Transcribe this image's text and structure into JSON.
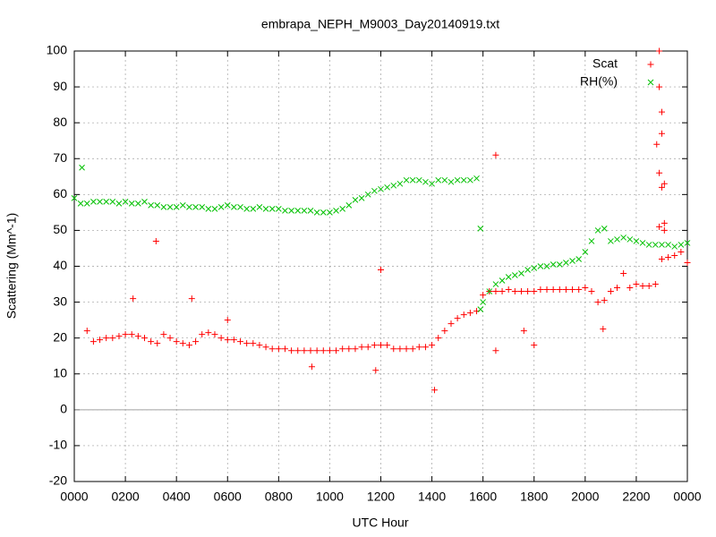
{
  "chart_data": {
    "type": "scatter",
    "title": "embrapa_NEPH_M9003_Day20140919.txt",
    "x_label": "UTC Hour",
    "y_label": "Scattering (Mm^-1)",
    "xlim": [
      0,
      24
    ],
    "ylim": [
      -20,
      100
    ],
    "xticks": [
      {
        "value": 0,
        "label": "0000"
      },
      {
        "value": 2,
        "label": "0200"
      },
      {
        "value": 4,
        "label": "0400"
      },
      {
        "value": 6,
        "label": "0600"
      },
      {
        "value": 8,
        "label": "0800"
      },
      {
        "value": 10,
        "label": "1000"
      },
      {
        "value": 12,
        "label": "1200"
      },
      {
        "value": 14,
        "label": "1400"
      },
      {
        "value": 16,
        "label": "1600"
      },
      {
        "value": 18,
        "label": "1800"
      },
      {
        "value": 20,
        "label": "2000"
      },
      {
        "value": 22,
        "label": "2200"
      },
      {
        "value": 24,
        "label": "0000"
      }
    ],
    "yticks": [
      -20,
      -10,
      0,
      10,
      20,
      30,
      40,
      50,
      60,
      70,
      80,
      90,
      100
    ],
    "grid": true,
    "legend": "top-right",
    "series": [
      {
        "name": "Scat",
        "color": "#ff0000",
        "marker": "+",
        "x": [
          0.5,
          0.75,
          1,
          1.25,
          1.5,
          1.75,
          2,
          2.25,
          2.5,
          2.75,
          3,
          3.25,
          3.5,
          3.75,
          4,
          4.25,
          4.5,
          4.75,
          5,
          5.25,
          5.5,
          5.75,
          6,
          6.25,
          6.5,
          6.75,
          7,
          7.25,
          7.5,
          7.75,
          8,
          8.25,
          8.5,
          8.75,
          9,
          9.25,
          9.5,
          9.75,
          10,
          10.25,
          10.5,
          10.75,
          11,
          11.25,
          11.5,
          11.75,
          12,
          12.25,
          12.5,
          12.75,
          13,
          13.25,
          13.5,
          13.75,
          14,
          14.25,
          14.5,
          14.75,
          15,
          15.25,
          15.5,
          15.75,
          16,
          16.25,
          16.5,
          16.75,
          17,
          17.25,
          17.5,
          17.75,
          18,
          18.25,
          18.5,
          18.75,
          19,
          19.25,
          19.5,
          19.75,
          20,
          20.25,
          20.5,
          20.75,
          21,
          21.25,
          21.5,
          21.75,
          22,
          22.25,
          22.5,
          22.75,
          23,
          23.25,
          23.5,
          23.75,
          24,
          3.2,
          2.3,
          4.6,
          6,
          12,
          14.1,
          16.5,
          16.5,
          17.6,
          18,
          20.7,
          22.9,
          22.9,
          23,
          23,
          22.8,
          22.9,
          23,
          23.1,
          23.1,
          23.1,
          22.9,
          11.8,
          9.3
        ],
        "values": [
          22,
          19,
          19.5,
          20,
          20,
          20.5,
          21,
          21,
          20.5,
          20,
          19,
          18.5,
          21,
          20,
          19,
          18.5,
          18,
          19,
          21,
          21.5,
          21,
          20,
          19.5,
          19.5,
          19,
          18.5,
          18.5,
          18,
          17.5,
          17,
          17,
          17,
          16.5,
          16.5,
          16.5,
          16.5,
          16.5,
          16.5,
          16.5,
          16.5,
          17,
          17,
          17,
          17.5,
          17.5,
          18,
          18,
          18,
          17,
          17,
          17,
          17,
          17.5,
          17.5,
          18,
          20,
          22,
          24,
          25.5,
          26.5,
          27,
          27.5,
          32,
          33,
          33,
          33,
          33.5,
          33,
          33,
          33,
          33,
          33.5,
          33.5,
          33.5,
          33.5,
          33.5,
          33.5,
          33.5,
          34,
          33,
          30,
          30.5,
          33,
          34,
          38,
          34,
          35,
          34.5,
          34.5,
          35,
          42,
          42.5,
          43,
          44,
          41,
          47,
          31,
          31,
          25,
          39,
          5.5,
          71,
          16.5,
          22,
          18,
          22.5,
          100,
          90,
          83,
          77,
          74,
          66,
          62,
          63,
          52,
          50,
          51,
          11,
          12
        ]
      },
      {
        "name": "RH(%)",
        "color": "#00c000",
        "marker": "x",
        "x": [
          0,
          0.25,
          0.5,
          0.75,
          1,
          1.25,
          1.5,
          1.75,
          2,
          2.25,
          2.5,
          2.75,
          3,
          3.25,
          3.5,
          3.75,
          4,
          4.25,
          4.5,
          4.75,
          5,
          5.25,
          5.5,
          5.75,
          6,
          6.25,
          6.5,
          6.75,
          7,
          7.25,
          7.5,
          7.75,
          8,
          8.25,
          8.5,
          8.75,
          9,
          9.25,
          9.5,
          9.75,
          10,
          10.25,
          10.5,
          10.75,
          11,
          11.25,
          11.5,
          11.75,
          12,
          12.25,
          12.5,
          12.75,
          13,
          13.25,
          13.5,
          13.75,
          14,
          14.25,
          14.5,
          14.75,
          15,
          15.25,
          15.5,
          15.75,
          16,
          16.25,
          16.5,
          16.75,
          17,
          17.25,
          17.5,
          17.75,
          18,
          18.25,
          18.5,
          18.75,
          19,
          19.25,
          19.5,
          19.75,
          20,
          20.25,
          20.5,
          20.75,
          21,
          21.25,
          21.5,
          21.75,
          22,
          22.25,
          22.5,
          22.75,
          23,
          23.25,
          23.5,
          23.75,
          24,
          0.3,
          15.9,
          15.9
        ],
        "values": [
          59,
          57.5,
          57.5,
          58,
          58,
          58,
          58,
          57.5,
          58,
          57.5,
          57.5,
          58,
          57,
          57,
          56.5,
          56.5,
          56.5,
          57,
          56.5,
          56.5,
          56.5,
          56,
          56,
          56.5,
          57,
          56.5,
          56.5,
          56,
          56,
          56.5,
          56,
          56,
          56,
          55.5,
          55.5,
          55.5,
          55.5,
          55.5,
          55,
          55,
          55,
          55.5,
          56,
          57,
          58.5,
          59,
          60,
          61,
          61.5,
          62,
          62.5,
          63,
          64,
          64,
          64,
          63.5,
          63,
          64,
          64,
          63.5,
          64,
          64,
          64,
          64.5,
          30,
          33,
          35,
          36,
          37,
          37.5,
          38,
          39,
          39.5,
          40,
          40,
          40.5,
          40.5,
          41,
          41.5,
          42,
          44,
          47,
          50,
          50.5,
          47,
          47.5,
          48,
          47.5,
          47,
          46.5,
          46,
          46,
          46,
          46,
          45.5,
          46,
          46.5,
          67.5,
          50.5,
          28
        ]
      }
    ]
  }
}
